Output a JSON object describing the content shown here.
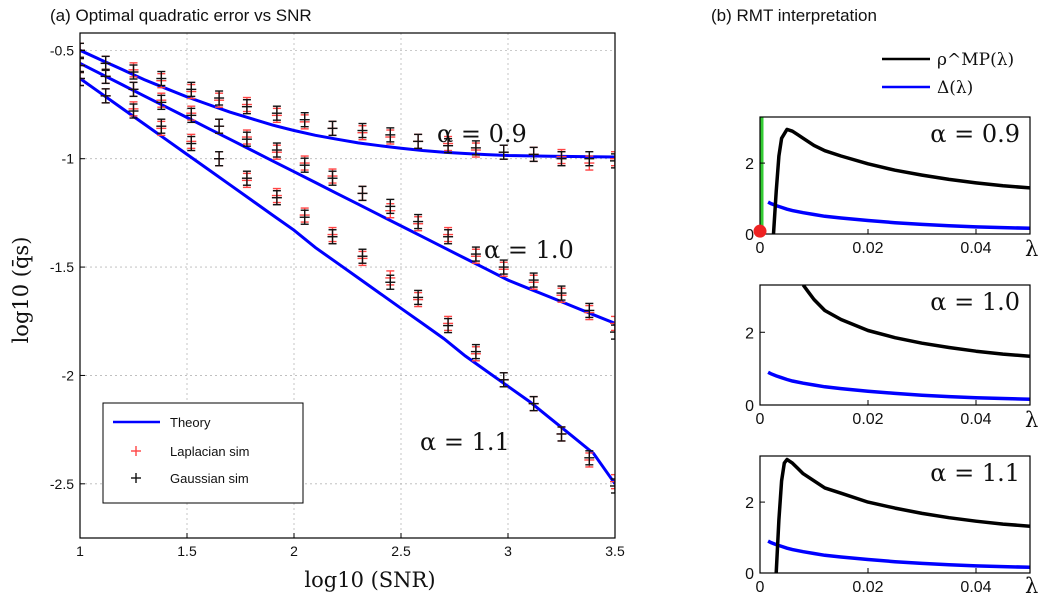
{
  "chart_data": [
    {
      "type": "line",
      "title": "(a) Optimal quadratic error vs SNR",
      "xlabel": "log10 (SNR)",
      "ylabel": "log10 (q̄s)",
      "xlim": [
        1,
        3.5
      ],
      "ylim": [
        -2.75,
        -0.42
      ],
      "xticks": [
        1,
        1.5,
        2,
        2.5,
        3,
        3.5
      ],
      "xtick_labels": [
        "1",
        "1.5",
        "2",
        "2.5",
        "3",
        "3.5"
      ],
      "yticks": [
        -2.5,
        -2,
        -1.5,
        -1,
        -0.5
      ],
      "ytick_labels": [
        "-2.5",
        "-2",
        "-1.5",
        "-1",
        "-0.5"
      ],
      "grid": true,
      "legend_position": "bottom-left",
      "legend": [
        {
          "label": "Theory",
          "marker": "line",
          "color": "#0000ff"
        },
        {
          "label": "Laplacian sim",
          "marker": "+",
          "color": "#ff4444"
        },
        {
          "label": "Gaussian sim",
          "marker": "+",
          "color": "#111111"
        }
      ],
      "annotations": [
        {
          "text": "α = 0.9",
          "series": "α = 0.9"
        },
        {
          "text": "α = 1.0",
          "series": "α = 1.0"
        },
        {
          "text": "α = 1.1",
          "series": "α = 1.1"
        }
      ],
      "sim_x": [
        1.0,
        1.12,
        1.25,
        1.38,
        1.52,
        1.65,
        1.78,
        1.92,
        2.05,
        2.18,
        2.32,
        2.45,
        2.58,
        2.72,
        2.85,
        2.98,
        3.12,
        3.25,
        3.38,
        3.5
      ],
      "series": [
        {
          "name": "α = 0.9",
          "theory_x": [
            1.0,
            1.1,
            1.2,
            1.3,
            1.4,
            1.5,
            1.6,
            1.7,
            1.8,
            1.9,
            2.0,
            2.1,
            2.2,
            2.3,
            2.4,
            2.5,
            2.6,
            2.7,
            2.8,
            2.9,
            3.0,
            3.1,
            3.2,
            3.3,
            3.4,
            3.5
          ],
          "theory_y": [
            -0.5,
            -0.545,
            -0.59,
            -0.635,
            -0.675,
            -0.715,
            -0.75,
            -0.785,
            -0.815,
            -0.845,
            -0.87,
            -0.892,
            -0.91,
            -0.927,
            -0.94,
            -0.952,
            -0.962,
            -0.97,
            -0.976,
            -0.981,
            -0.985,
            -0.987,
            -0.989,
            -0.99,
            -0.991,
            -0.992
          ],
          "laplacian_y": [
            -0.5,
            -0.56,
            -0.59,
            -0.64,
            -0.69,
            -0.73,
            -0.75,
            -0.8,
            -0.83,
            -0.86,
            -0.88,
            -0.9,
            -0.92,
            -0.93,
            -0.96,
            -0.97,
            -0.98,
            -0.99,
            -1.02,
            -1.0
          ],
          "gaussian_y": [
            -0.5,
            -0.56,
            -0.6,
            -0.63,
            -0.68,
            -0.72,
            -0.76,
            -0.79,
            -0.82,
            -0.86,
            -0.87,
            -0.89,
            -0.92,
            -0.94,
            -0.95,
            -0.97,
            -0.98,
            -1.0,
            -1.0,
            -1.01
          ]
        },
        {
          "name": "α = 1.0",
          "theory_x": [
            1.0,
            1.1,
            1.2,
            1.3,
            1.4,
            1.5,
            1.6,
            1.7,
            1.8,
            1.9,
            2.0,
            2.1,
            2.2,
            2.3,
            2.4,
            2.5,
            2.6,
            2.7,
            2.8,
            2.9,
            3.0,
            3.1,
            3.2,
            3.3,
            3.4,
            3.5
          ],
          "theory_y": [
            -0.56,
            -0.61,
            -0.66,
            -0.71,
            -0.76,
            -0.81,
            -0.86,
            -0.91,
            -0.96,
            -1.01,
            -1.06,
            -1.11,
            -1.16,
            -1.21,
            -1.26,
            -1.31,
            -1.36,
            -1.41,
            -1.46,
            -1.51,
            -1.56,
            -1.6,
            -1.64,
            -1.68,
            -1.72,
            -1.76
          ],
          "laplacian_y": [
            -0.57,
            -0.62,
            -0.68,
            -0.73,
            -0.79,
            -0.85,
            -0.9,
            -0.97,
            -1.02,
            -1.08,
            -1.16,
            -1.24,
            -1.3,
            -1.35,
            -1.45,
            -1.51,
            -1.57,
            -1.63,
            -1.71,
            -1.76
          ],
          "gaussian_y": [
            -0.57,
            -0.62,
            -0.68,
            -0.74,
            -0.8,
            -0.85,
            -0.91,
            -0.96,
            -1.03,
            -1.09,
            -1.16,
            -1.22,
            -1.29,
            -1.36,
            -1.44,
            -1.5,
            -1.56,
            -1.62,
            -1.7,
            -1.8
          ]
        },
        {
          "name": "α = 1.1",
          "theory_x": [
            1.0,
            1.1,
            1.2,
            1.3,
            1.4,
            1.5,
            1.6,
            1.7,
            1.8,
            1.9,
            2.0,
            2.1,
            2.2,
            2.3,
            2.4,
            2.5,
            2.6,
            2.7,
            2.8,
            2.9,
            3.0,
            3.1,
            3.2,
            3.3,
            3.4,
            3.5
          ],
          "theory_y": [
            -0.63,
            -0.7,
            -0.77,
            -0.84,
            -0.91,
            -0.98,
            -1.05,
            -1.12,
            -1.19,
            -1.26,
            -1.33,
            -1.41,
            -1.48,
            -1.55,
            -1.62,
            -1.69,
            -1.76,
            -1.83,
            -1.91,
            -1.98,
            -2.05,
            -2.12,
            -2.2,
            -2.28,
            -2.36,
            -2.5
          ],
          "laplacian_y": [
            -0.63,
            -0.71,
            -0.77,
            -0.86,
            -0.92,
            -1.0,
            -1.1,
            -1.17,
            -1.26,
            -1.35,
            -1.46,
            -1.55,
            -1.65,
            -1.76,
            -1.9,
            -2.02,
            -2.13,
            -2.27,
            -2.39,
            -2.49
          ],
          "gaussian_y": [
            -0.63,
            -0.71,
            -0.78,
            -0.85,
            -0.93,
            -1.0,
            -1.09,
            -1.18,
            -1.27,
            -1.36,
            -1.45,
            -1.57,
            -1.64,
            -1.77,
            -1.89,
            -2.02,
            -2.13,
            -2.27,
            -2.38,
            -2.51
          ]
        }
      ]
    },
    {
      "type": "line",
      "title": "(b) RMT interpretation",
      "xlabel": "λ",
      "xlim": [
        0,
        0.05
      ],
      "ylim": [
        0,
        3.3
      ],
      "xticks": [
        0,
        0.02,
        0.04
      ],
      "xtick_labels": [
        "0",
        "0.02",
        "0.04"
      ],
      "yticks": [
        0,
        2
      ],
      "ytick_labels": [
        "0",
        "2"
      ],
      "legend_position": "top",
      "legend": [
        {
          "label": "ρ^MP(λ)",
          "color": "#000000"
        },
        {
          "label": "Δ(λ)",
          "color": "#0000ff"
        }
      ],
      "lambda": [
        0.0015,
        0.002,
        0.003,
        0.004,
        0.005,
        0.006,
        0.008,
        0.01,
        0.012,
        0.015,
        0.02,
        0.025,
        0.03,
        0.035,
        0.04,
        0.045,
        0.05
      ],
      "delta": [
        0.9,
        0.86,
        0.8,
        0.75,
        0.7,
        0.66,
        0.6,
        0.55,
        0.5,
        0.45,
        0.38,
        0.32,
        0.27,
        0.23,
        0.2,
        0.18,
        0.16
      ],
      "panels": [
        {
          "label": "α = 0.9",
          "rho_lambda": [
            0.0025,
            0.003,
            0.0035,
            0.004,
            0.005,
            0.006,
            0.007,
            0.008,
            0.01,
            0.012,
            0.015,
            0.02,
            0.025,
            0.03,
            0.035,
            0.04,
            0.045,
            0.05
          ],
          "rho": [
            0.0,
            1.2,
            2.2,
            2.7,
            2.95,
            2.9,
            2.8,
            2.7,
            2.5,
            2.35,
            2.2,
            1.98,
            1.8,
            1.66,
            1.54,
            1.44,
            1.36,
            1.3
          ],
          "spike": {
            "lambda": 0,
            "height": 3.3,
            "color": "#33cc33"
          },
          "point": {
            "lambda": 0,
            "value": 0.08,
            "color": "#ee2222"
          }
        },
        {
          "label": "α = 1.0",
          "rho_lambda": [
            0.008,
            0.009,
            0.01,
            0.012,
            0.015,
            0.02,
            0.025,
            0.03,
            0.035,
            0.04,
            0.045,
            0.05
          ],
          "rho": [
            3.3,
            3.1,
            2.9,
            2.6,
            2.35,
            2.05,
            1.85,
            1.7,
            1.58,
            1.48,
            1.4,
            1.34
          ]
        },
        {
          "label": "α = 1.1",
          "rho_lambda": [
            0.003,
            0.0035,
            0.004,
            0.0045,
            0.005,
            0.006,
            0.007,
            0.008,
            0.01,
            0.012,
            0.015,
            0.02,
            0.025,
            0.03,
            0.035,
            0.04,
            0.045,
            0.05
          ],
          "rho": [
            0.0,
            1.5,
            2.6,
            3.1,
            3.2,
            3.1,
            2.95,
            2.8,
            2.6,
            2.4,
            2.25,
            2.0,
            1.83,
            1.68,
            1.56,
            1.46,
            1.38,
            1.32
          ]
        }
      ]
    }
  ]
}
